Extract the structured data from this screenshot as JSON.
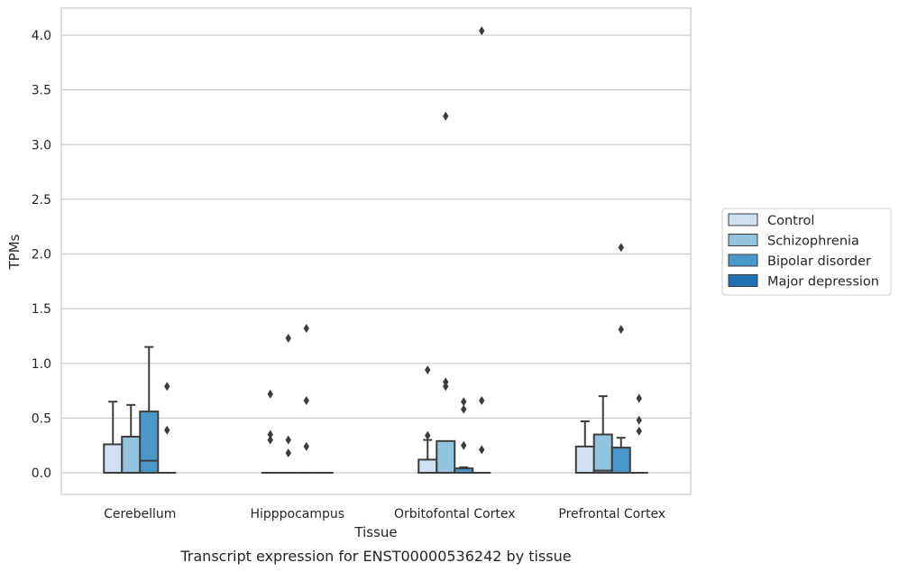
{
  "chart_data": {
    "type": "box",
    "caption": "Transcript expression for ENST00000536242 by tissue",
    "xlabel": "Tissue",
    "ylabel": "TPMs",
    "ylim": [
      -0.2,
      4.25
    ],
    "yticks": [
      0.0,
      0.5,
      1.0,
      1.5,
      2.0,
      2.5,
      3.0,
      3.5,
      4.0
    ],
    "ytick_labels": [
      "0.0",
      "0.5",
      "1.0",
      "1.5",
      "2.0",
      "2.5",
      "3.0",
      "3.5",
      "4.0"
    ],
    "grid": true,
    "legend_position": "right-outside",
    "categories": [
      "Cerebellum",
      "Hipppocampus",
      "Orbitofontal Cortex",
      "Prefrontal Cortex"
    ],
    "series": [
      {
        "name": "Control",
        "color": "#cfe1f2",
        "boxes": [
          {
            "q1": 0.0,
            "median": 0.0,
            "q3": 0.26,
            "whislo": 0.0,
            "whishi": 0.65,
            "fliers": []
          },
          {
            "q1": 0.0,
            "median": 0.0,
            "q3": 0.0,
            "whislo": 0.0,
            "whishi": 0.0,
            "fliers": [
              0.72,
              0.35,
              0.3
            ]
          },
          {
            "q1": 0.0,
            "median": 0.0,
            "q3": 0.12,
            "whislo": 0.0,
            "whishi": 0.3,
            "fliers": [
              0.94,
              0.34
            ]
          },
          {
            "q1": 0.0,
            "median": 0.0,
            "q3": 0.24,
            "whislo": 0.0,
            "whishi": 0.47,
            "fliers": []
          }
        ]
      },
      {
        "name": "Schizophrenia",
        "color": "#93c4de",
        "boxes": [
          {
            "q1": 0.0,
            "median": 0.0,
            "q3": 0.33,
            "whislo": 0.0,
            "whishi": 0.62,
            "fliers": []
          },
          {
            "q1": 0.0,
            "median": 0.0,
            "q3": 0.0,
            "whislo": 0.0,
            "whishi": 0.0,
            "fliers": [
              1.23,
              0.3,
              0.18
            ]
          },
          {
            "q1": 0.0,
            "median": 0.0,
            "q3": 0.29,
            "whislo": 0.0,
            "whishi": 0.29,
            "fliers": [
              3.26,
              0.83,
              0.79
            ]
          },
          {
            "q1": 0.0,
            "median": 0.02,
            "q3": 0.35,
            "whislo": 0.0,
            "whishi": 0.7,
            "fliers": []
          }
        ]
      },
      {
        "name": "Bipolar disorder",
        "color": "#4a98c9",
        "boxes": [
          {
            "q1": 0.0,
            "median": 0.11,
            "q3": 0.56,
            "whislo": 0.0,
            "whishi": 1.15,
            "fliers": []
          },
          {
            "q1": 0.0,
            "median": 0.0,
            "q3": 0.0,
            "whislo": 0.0,
            "whishi": 0.0,
            "fliers": [
              1.32,
              0.66,
              0.24
            ]
          },
          {
            "q1": 0.0,
            "median": 0.0,
            "q3": 0.04,
            "whislo": 0.0,
            "whishi": 0.05,
            "fliers": [
              0.65,
              0.58,
              0.25
            ]
          },
          {
            "q1": 0.0,
            "median": 0.0,
            "q3": 0.23,
            "whislo": 0.0,
            "whishi": 0.32,
            "fliers": [
              2.06,
              1.31
            ]
          }
        ]
      },
      {
        "name": "Major depression",
        "color": "#2070b4",
        "boxes": [
          {
            "q1": 0.0,
            "median": 0.0,
            "q3": 0.0,
            "whislo": 0.0,
            "whishi": 0.0,
            "fliers": [
              0.79,
              0.39
            ]
          },
          {
            "q1": 0.0,
            "median": 0.0,
            "q3": 0.0,
            "whislo": 0.0,
            "whishi": 0.0,
            "fliers": []
          },
          {
            "q1": 0.0,
            "median": 0.0,
            "q3": 0.0,
            "whislo": 0.0,
            "whishi": 0.0,
            "fliers": [
              4.04,
              0.66,
              0.21
            ]
          },
          {
            "q1": 0.0,
            "median": 0.0,
            "q3": 0.0,
            "whislo": 0.0,
            "whishi": 0.0,
            "fliers": [
              0.68,
              0.48,
              0.38
            ]
          }
        ]
      }
    ]
  }
}
